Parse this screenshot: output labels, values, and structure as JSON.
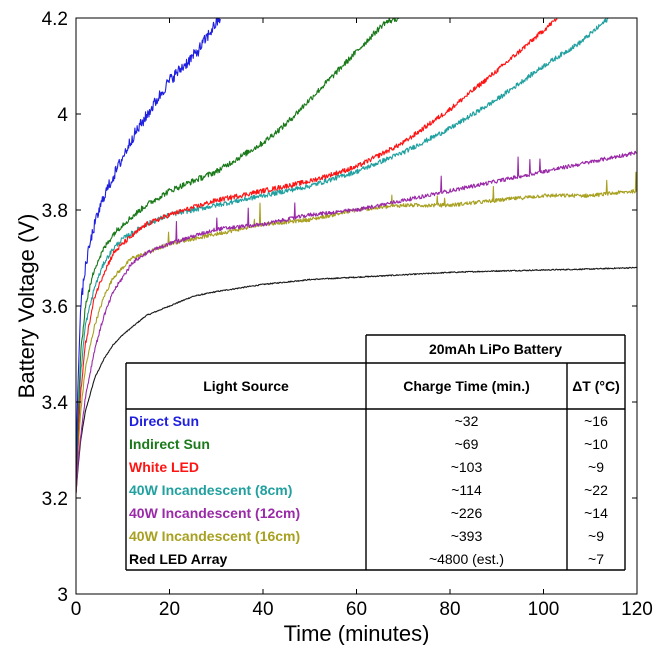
{
  "chart_data": {
    "type": "line",
    "title": "",
    "xlabel": "Time (minutes)",
    "ylabel": "Battery Voltage (V)",
    "xlim": [
      0,
      120
    ],
    "ylim": [
      3,
      4.2
    ],
    "x_ticks": [
      "0",
      "20",
      "40",
      "60",
      "80",
      "100",
      "120"
    ],
    "y_ticks": [
      "3",
      "3.2",
      "3.4",
      "3.6",
      "3.8",
      "4",
      "4.2"
    ],
    "grid": false,
    "series": [
      {
        "name": "Direct Sun",
        "color": "#1f1fe0",
        "x": [
          0,
          0.3,
          1,
          2,
          3,
          4,
          5,
          6,
          8,
          10,
          12,
          14,
          16,
          18,
          20,
          22,
          24,
          26,
          28,
          30,
          31
        ],
        "y": [
          3.22,
          3.4,
          3.6,
          3.68,
          3.73,
          3.77,
          3.8,
          3.83,
          3.87,
          3.91,
          3.95,
          3.98,
          4.01,
          4.04,
          4.07,
          4.09,
          4.11,
          4.13,
          4.16,
          4.19,
          4.2
        ]
      },
      {
        "name": "Indirect Sun",
        "color": "#1a7a1a",
        "x": [
          0,
          0.5,
          1,
          2,
          4,
          6,
          8,
          10,
          15,
          20,
          25,
          30,
          35,
          40,
          45,
          50,
          55,
          60,
          63,
          66,
          69
        ],
        "y": [
          3.22,
          3.38,
          3.5,
          3.6,
          3.68,
          3.72,
          3.75,
          3.77,
          3.81,
          3.84,
          3.86,
          3.88,
          3.91,
          3.94,
          3.98,
          4.03,
          4.08,
          4.13,
          4.16,
          4.19,
          4.2
        ]
      },
      {
        "name": "White LED",
        "color": "#ff1414",
        "x": [
          0,
          0.5,
          1,
          2,
          4,
          6,
          8,
          10,
          15,
          20,
          30,
          40,
          50,
          60,
          70,
          80,
          90,
          96,
          103
        ],
        "y": [
          3.21,
          3.34,
          3.42,
          3.52,
          3.62,
          3.67,
          3.71,
          3.73,
          3.77,
          3.79,
          3.82,
          3.84,
          3.86,
          3.89,
          3.94,
          4.01,
          4.09,
          4.14,
          4.2
        ]
      },
      {
        "name": "40W Incandescent (8cm)",
        "color": "#21a0a0",
        "x": [
          0,
          0.5,
          1,
          2,
          4,
          6,
          8,
          10,
          15,
          20,
          30,
          40,
          50,
          60,
          70,
          80,
          90,
          100,
          108,
          114
        ],
        "y": [
          3.21,
          3.36,
          3.46,
          3.56,
          3.64,
          3.69,
          3.72,
          3.74,
          3.77,
          3.79,
          3.81,
          3.83,
          3.85,
          3.88,
          3.92,
          3.97,
          4.03,
          4.1,
          4.15,
          4.2
        ]
      },
      {
        "name": "40W Incandescent (12cm)",
        "color": "#9a2aa8",
        "x": [
          0,
          0.5,
          1,
          2,
          4,
          6,
          8,
          10,
          12,
          15,
          20,
          30,
          40,
          50,
          60,
          70,
          80,
          90,
          100,
          110,
          120
        ],
        "y": [
          3.21,
          3.28,
          3.33,
          3.41,
          3.51,
          3.58,
          3.63,
          3.66,
          3.69,
          3.71,
          3.73,
          3.76,
          3.77,
          3.79,
          3.8,
          3.82,
          3.84,
          3.86,
          3.88,
          3.9,
          3.92
        ]
      },
      {
        "name": "40W Incandescent (16cm)",
        "color": "#a8a020",
        "x": [
          0,
          0.5,
          1,
          2,
          4,
          6,
          8,
          10,
          12,
          15,
          20,
          30,
          40,
          50,
          60,
          70,
          80,
          90,
          100,
          110,
          120
        ],
        "y": [
          3.21,
          3.31,
          3.38,
          3.47,
          3.56,
          3.62,
          3.66,
          3.68,
          3.7,
          3.71,
          3.73,
          3.75,
          3.77,
          3.78,
          3.8,
          3.81,
          3.81,
          3.82,
          3.83,
          3.83,
          3.84
        ]
      },
      {
        "name": "Red LED Array",
        "color": "#1a1a1a",
        "x": [
          0,
          0.5,
          1,
          2,
          4,
          6,
          8,
          10,
          15,
          20,
          25,
          30,
          40,
          50,
          60,
          70,
          80,
          90,
          100,
          110,
          120
        ],
        "y": [
          3.21,
          3.27,
          3.32,
          3.38,
          3.45,
          3.49,
          3.52,
          3.54,
          3.58,
          3.6,
          3.62,
          3.63,
          3.645,
          3.655,
          3.66,
          3.665,
          3.67,
          3.673,
          3.675,
          3.677,
          3.68
        ]
      }
    ],
    "spike_series": [
      "40W Incandescent (16cm)",
      "40W Incandescent (12cm)"
    ],
    "table": {
      "group_header": "20mAh LiPo Battery",
      "columns": [
        "Light Source",
        "Charge Time (min.)",
        "ΔT (°C)"
      ],
      "rows": [
        {
          "source": "Direct Sun",
          "charge": "~32",
          "dt": "~16",
          "color": "#1f1fe0"
        },
        {
          "source": "Indirect Sun",
          "charge": "~69",
          "dt": "~10",
          "color": "#1a7a1a"
        },
        {
          "source": "White LED",
          "charge": "~103",
          "dt": "~9",
          "color": "#ff1414"
        },
        {
          "source": "40W Incandescent (8cm)",
          "charge": "~114",
          "dt": "~22",
          "color": "#21a0a0"
        },
        {
          "source": "40W Incandescent (12cm)",
          "charge": "~226",
          "dt": "~14",
          "color": "#9a2aa8"
        },
        {
          "source": "40W Incandescent (16cm)",
          "charge": "~393",
          "dt": "~9",
          "color": "#a8a020"
        },
        {
          "source": "Red LED Array",
          "charge": "~4800 (est.)",
          "dt": "~7",
          "color": "#000000"
        }
      ]
    }
  }
}
